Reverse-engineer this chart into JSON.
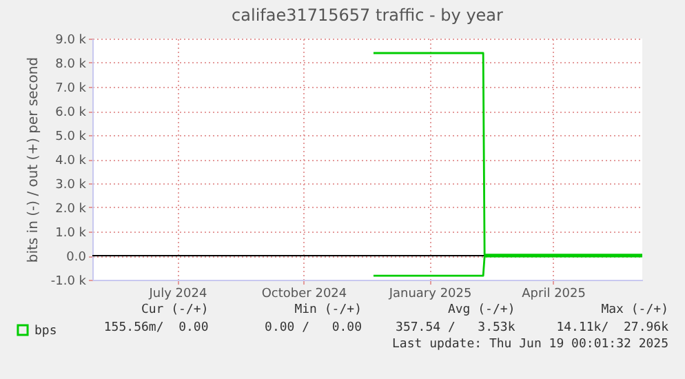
{
  "chart_data": {
    "type": "line",
    "title": "califae31715657 traffic - by year",
    "ylabel": "bits in (-) / out (+) per second",
    "series": [
      {
        "name": "bps",
        "color": "#00cc00",
        "x": [
          "2024-12-05",
          "2025-02-23",
          "2025-02-24",
          "2025-06-19"
        ],
        "values": [
          8400,
          8400,
          40,
          40
        ]
      },
      {
        "color": "#00cc00",
        "x": [
          "2024-12-05",
          "2025-02-23",
          "2025-02-24",
          "2025-06-19"
        ],
        "values": [
          -830,
          -830,
          -30,
          -30
        ]
      }
    ],
    "xlim": [
      "2024-05-14",
      "2025-06-19"
    ],
    "xticks": [
      {
        "value": "2024-07-15",
        "label": "July 2024"
      },
      {
        "value": "2024-10-15",
        "label": "October 2024"
      },
      {
        "value": "2025-01-15",
        "label": "January 2025"
      },
      {
        "value": "2025-04-15",
        "label": "April 2025"
      }
    ],
    "ylim": [
      -1000,
      9000
    ],
    "yticks": [
      {
        "value": -1000,
        "label": "-1.0 k"
      },
      {
        "value": 0,
        "label": "0.0"
      },
      {
        "value": 1000,
        "label": "1.0 k"
      },
      {
        "value": 2000,
        "label": "2.0 k"
      },
      {
        "value": 3000,
        "label": "3.0 k"
      },
      {
        "value": 4000,
        "label": "4.0 k"
      },
      {
        "value": 5000,
        "label": "5.0 k"
      },
      {
        "value": 6000,
        "label": "6.0 k"
      },
      {
        "value": 7000,
        "label": "7.0 k"
      },
      {
        "value": 8000,
        "label": "8.0 k"
      },
      {
        "value": 9000,
        "label": "9.0 k"
      }
    ],
    "ref_lines": [
      {
        "axis": "y",
        "value": 0,
        "color": "#000000"
      }
    ],
    "grid": true,
    "legend": "bottom left",
    "annotations": [
      "Cur (-/+)",
      "Min (-/+)",
      "Avg (-/+)",
      "Max (-/+)",
      "155.56m/  0.00",
      "0.00 /   0.00",
      "357.54 /   3.53k",
      "14.11k/  27.96k",
      "Last update: Thu Jun 19 00:01:32 2025"
    ]
  }
}
